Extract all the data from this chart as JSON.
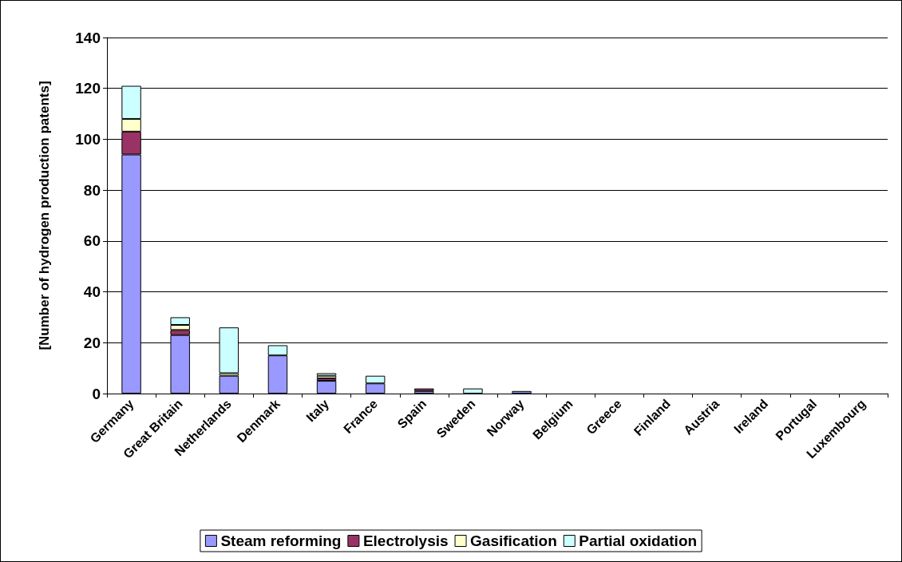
{
  "chart_data": {
    "type": "bar",
    "stacked": true,
    "ylabel": "[Number of hydrogen production patents]",
    "categories": [
      "Germany",
      "Great Britain",
      "Netherlands",
      "Denmark",
      "Italy",
      "France",
      "Spain",
      "Sweden",
      "Norway",
      "Belgium",
      "Greece",
      "Finland",
      "Austria",
      "Ireland",
      "Portugal",
      "Luxembourg"
    ],
    "series": [
      {
        "name": "Steam reforming",
        "color": "#9999ff",
        "values": [
          94,
          23,
          7,
          15,
          5,
          4,
          1,
          0,
          1,
          0,
          0,
          0,
          0,
          0,
          0,
          0
        ]
      },
      {
        "name": "Electrolysis",
        "color": "#993366",
        "values": [
          9,
          2,
          0,
          0,
          1,
          0,
          1,
          0,
          0,
          0,
          0,
          0,
          0,
          0,
          0,
          0
        ]
      },
      {
        "name": "Gasification",
        "color": "#ffffcc",
        "values": [
          5,
          2,
          1,
          0,
          1,
          0,
          0,
          0,
          0,
          0,
          0,
          0,
          0,
          0,
          0,
          0
        ]
      },
      {
        "name": "Partial oxidation",
        "color": "#ccffff",
        "values": [
          13,
          3,
          18,
          4,
          1,
          3,
          0,
          2,
          0,
          0,
          0,
          0,
          0,
          0,
          0,
          0
        ]
      }
    ],
    "ylim": [
      0,
      140
    ],
    "yticks": [
      0,
      20,
      40,
      60,
      80,
      100,
      120,
      140
    ],
    "grid": "y",
    "legend": "bottom"
  }
}
